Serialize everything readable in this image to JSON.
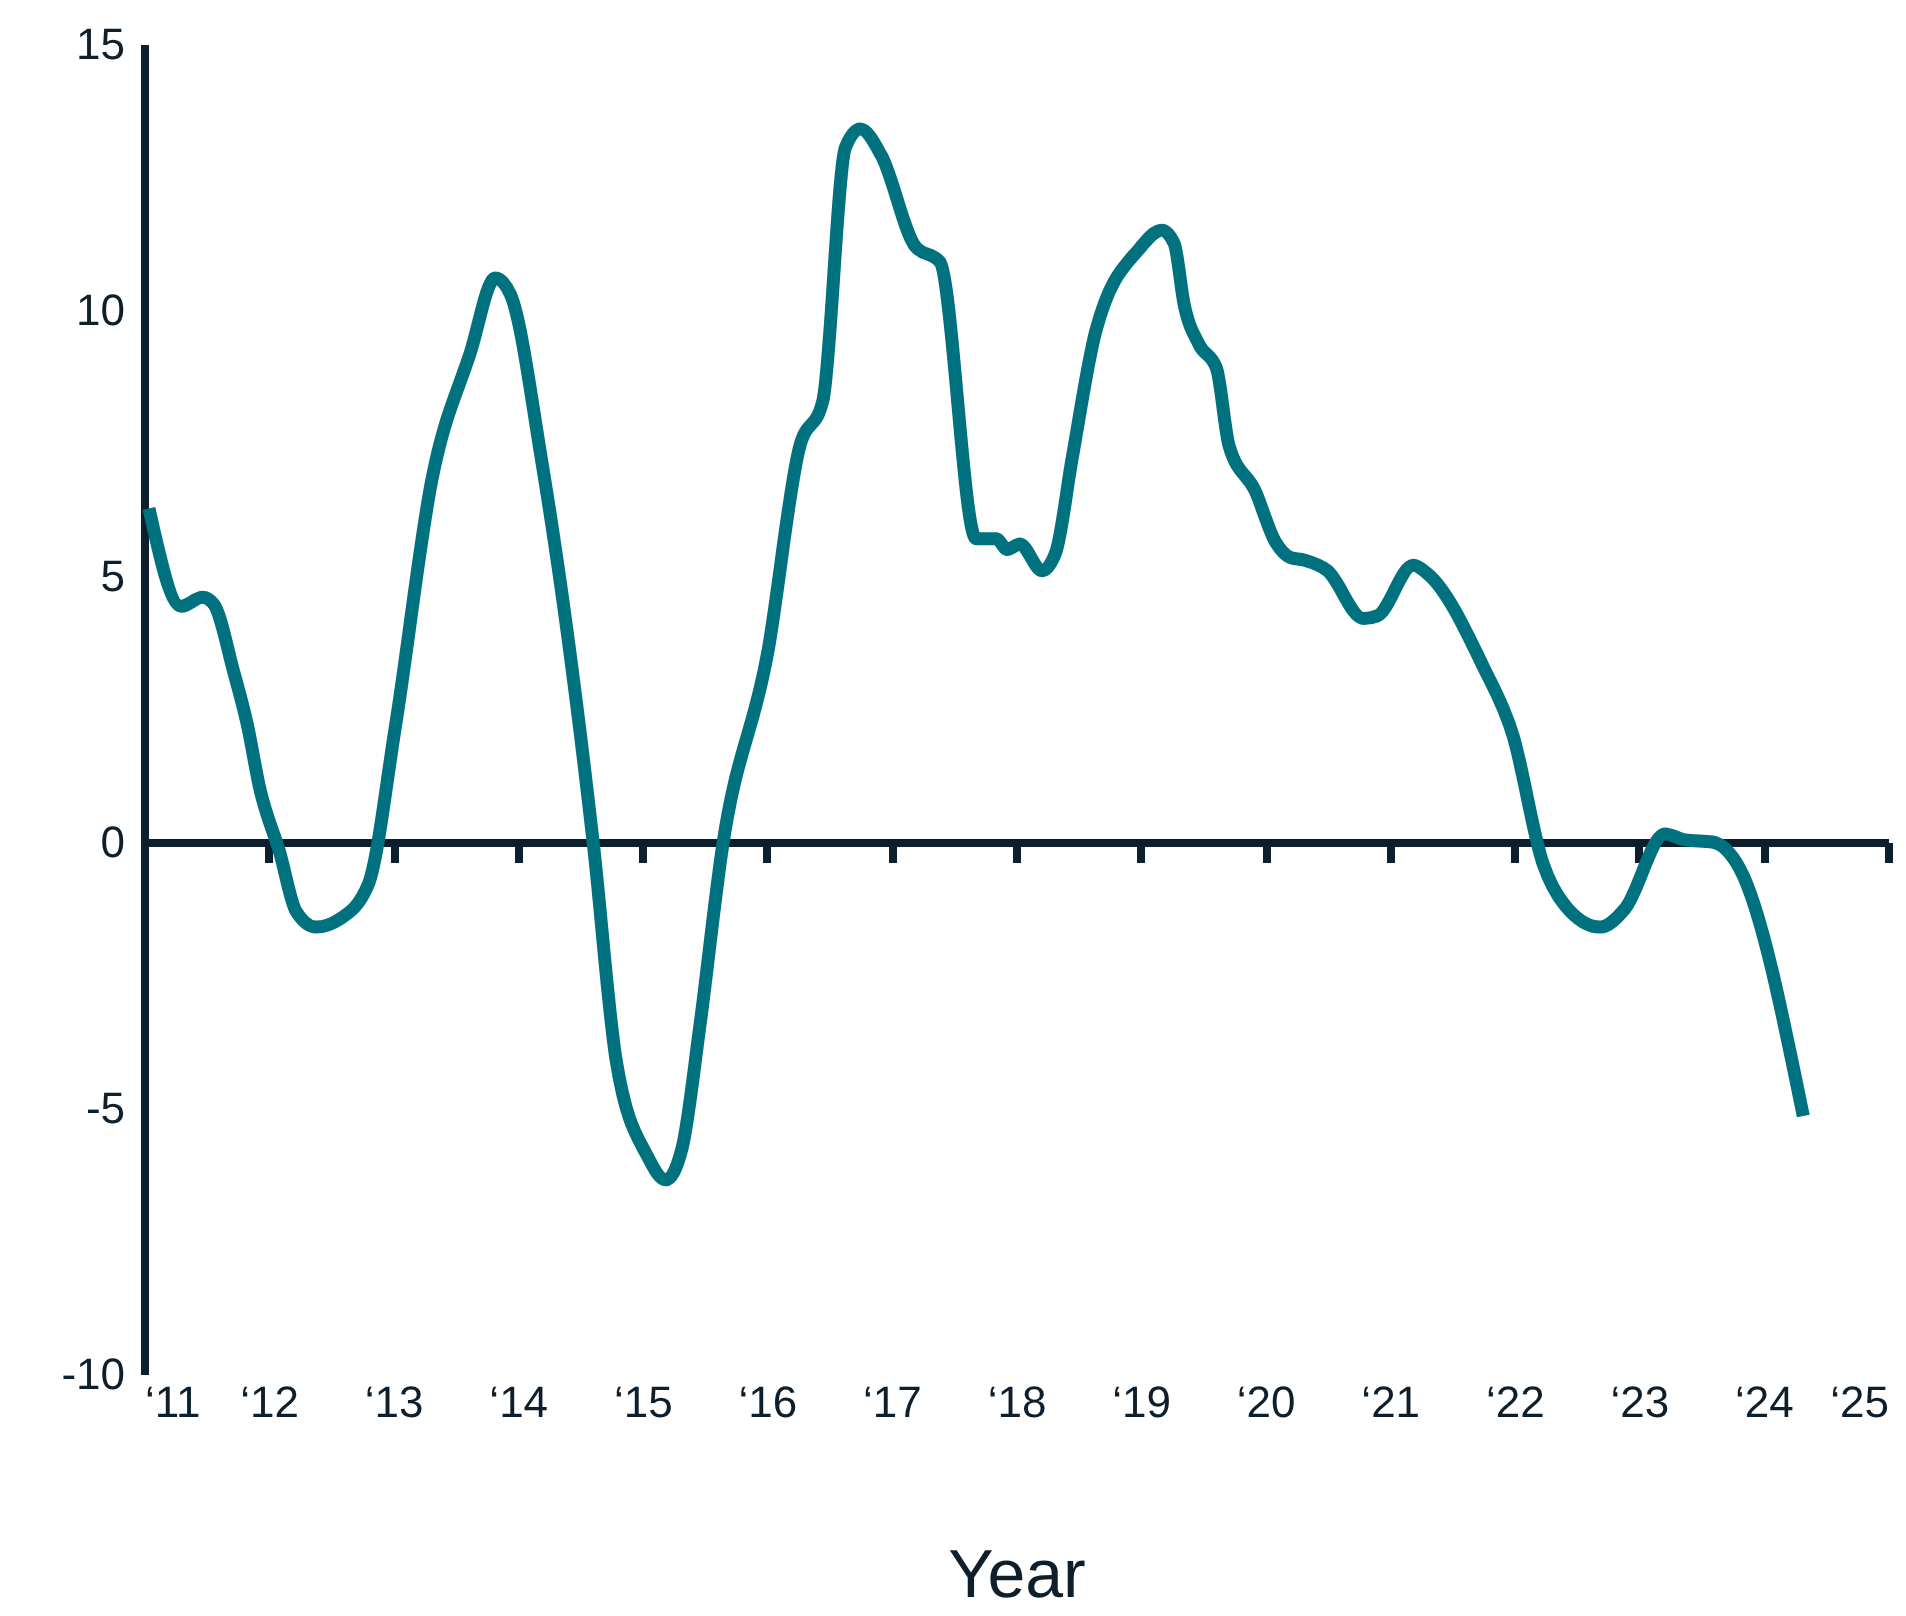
{
  "chart_data": {
    "type": "line",
    "xlabel": "Year",
    "x": [
      11.04,
      11.3,
      11.47,
      11.56,
      11.72,
      11.83,
      11.93,
      12.09,
      12.22,
      12.38,
      12.57,
      12.8,
      13.02,
      13.31,
      13.62,
      13.82,
      13.94,
      14.19,
      14.4,
      14.61,
      14.79,
      15.04,
      15.19,
      15.32,
      15.46,
      15.64,
      16.01,
      16.26,
      16.45,
      16.63,
      16.75,
      16.92,
      17.19,
      17.39,
      17.68,
      17.84,
      17.93,
      18.03,
      18.21,
      18.32,
      18.45,
      18.64,
      18.99,
      19.17,
      19.27,
      19.35,
      19.47,
      19.61,
      19.71,
      19.92,
      20.08,
      20.2,
      20.31,
      20.5,
      20.79,
      20.9,
      21.19,
      21.3,
      21.75,
      21.99,
      22.23,
      22.41,
      22.69,
      22.89,
      23.21,
      23.37,
      23.59,
      23.81,
      24.32
    ],
    "series": [
      {
        "color": "#00717f",
        "values": [
          6.27,
          4.43,
          4.6,
          4.47,
          3.2,
          2.2,
          1.0,
          -0.2,
          -1.3,
          -1.6,
          -1.45,
          -0.8,
          2.2,
          6.8,
          9.2,
          10.6,
          10.3,
          7.2,
          3.9,
          -0.1,
          -4.1,
          -5.9,
          -6.35,
          -5.75,
          -3.5,
          -0.15,
          3.6,
          7.4,
          8.3,
          13.05,
          13.4,
          12.9,
          11.2,
          10.9,
          5.7,
          5.7,
          5.5,
          5.6,
          5.1,
          5.45,
          7.2,
          9.6,
          11.15,
          11.5,
          11.25,
          10.1,
          9.35,
          8.9,
          7.45,
          6.6,
          5.65,
          5.35,
          5.3,
          5.1,
          4.2,
          4.25,
          5.2,
          5.05,
          3.3,
          2.0,
          -0.4,
          -1.2,
          -1.6,
          -1.25,
          0.15,
          0.04,
          0.0,
          -0.5,
          -5.15
        ]
      }
    ],
    "xlim": [
      11,
      25
    ],
    "xticks": [
      {
        "value": 11,
        "label": "‘11"
      },
      {
        "value": 12,
        "label": "‘12"
      },
      {
        "value": 13,
        "label": "‘13"
      },
      {
        "value": 14,
        "label": "‘14"
      },
      {
        "value": 15,
        "label": "‘15"
      },
      {
        "value": 16,
        "label": "‘16"
      },
      {
        "value": 17,
        "label": "‘17"
      },
      {
        "value": 18,
        "label": "‘18"
      },
      {
        "value": 19,
        "label": "‘19"
      },
      {
        "value": 20,
        "label": "‘20"
      },
      {
        "value": 21,
        "label": "‘21"
      },
      {
        "value": 22,
        "label": "‘22"
      },
      {
        "value": 23,
        "label": "‘23"
      },
      {
        "value": 24,
        "label": "‘24"
      },
      {
        "value": 25,
        "label": "‘25"
      }
    ],
    "ylim": [
      -10,
      15
    ],
    "yticks": [
      -10,
      -5,
      0,
      5,
      10,
      15
    ]
  }
}
